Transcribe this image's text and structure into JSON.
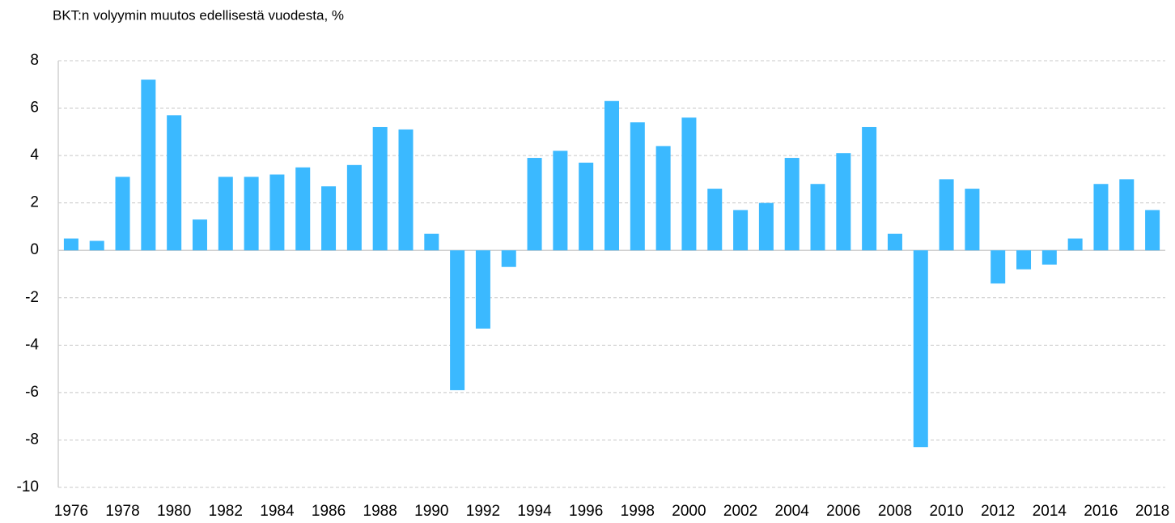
{
  "chart_data": {
    "type": "bar",
    "title": "BKT:n volyymin muutos  edellisestä vuodesta, %",
    "categories": [
      "1976",
      null,
      "1978",
      null,
      "1980",
      null,
      "1982",
      null,
      "1984",
      null,
      "1986",
      null,
      "1988",
      null,
      "1990",
      null,
      "1992",
      null,
      "1994",
      null,
      "1996",
      null,
      "1998",
      null,
      "2000",
      null,
      "2002",
      null,
      "2004",
      null,
      "2006",
      null,
      "2008",
      null,
      "2010",
      null,
      "2012",
      null,
      "2014",
      null,
      "2016",
      null,
      "2018"
    ],
    "values": [
      0.5,
      0.4,
      3.1,
      7.2,
      5.7,
      1.3,
      3.1,
      3.1,
      3.2,
      3.5,
      2.7,
      3.6,
      5.2,
      5.1,
      0.7,
      -5.9,
      -3.3,
      -0.7,
      3.9,
      4.2,
      3.7,
      6.3,
      5.4,
      4.4,
      5.6,
      2.6,
      1.7,
      2.0,
      3.9,
      2.8,
      4.1,
      5.2,
      0.7,
      -8.3,
      3.0,
      2.6,
      -1.4,
      -0.8,
      -0.6,
      0.5,
      2.8,
      3.0,
      1.7
    ],
    "color": "#3bb9ff",
    "ylim": [
      -10,
      8
    ],
    "yticks": [
      -10,
      -8,
      -6,
      -4,
      -2,
      0,
      2,
      4,
      6,
      8
    ],
    "grid": true
  }
}
